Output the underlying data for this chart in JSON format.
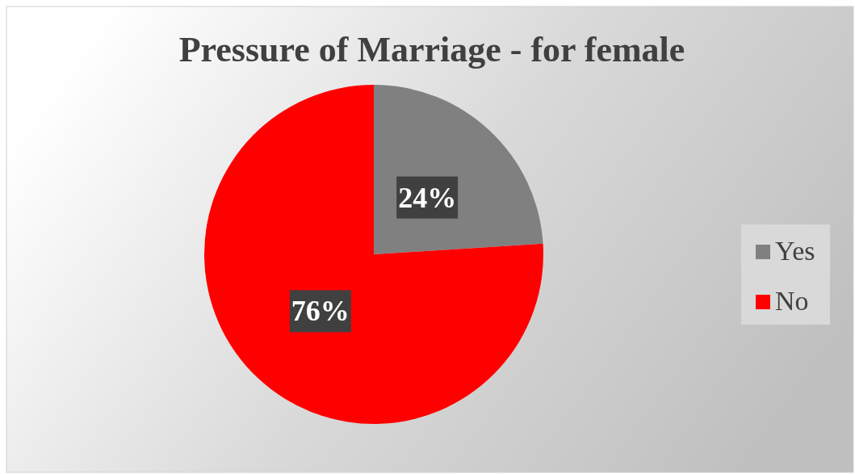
{
  "chart_data": {
    "type": "pie",
    "title": "Pressure of Marriage - for female",
    "categories": [
      "Yes",
      "No"
    ],
    "values": [
      24,
      76
    ],
    "colors": [
      "#808080",
      "#ff0000"
    ],
    "value_labels": [
      "24%",
      "76%"
    ],
    "legend": "right"
  }
}
